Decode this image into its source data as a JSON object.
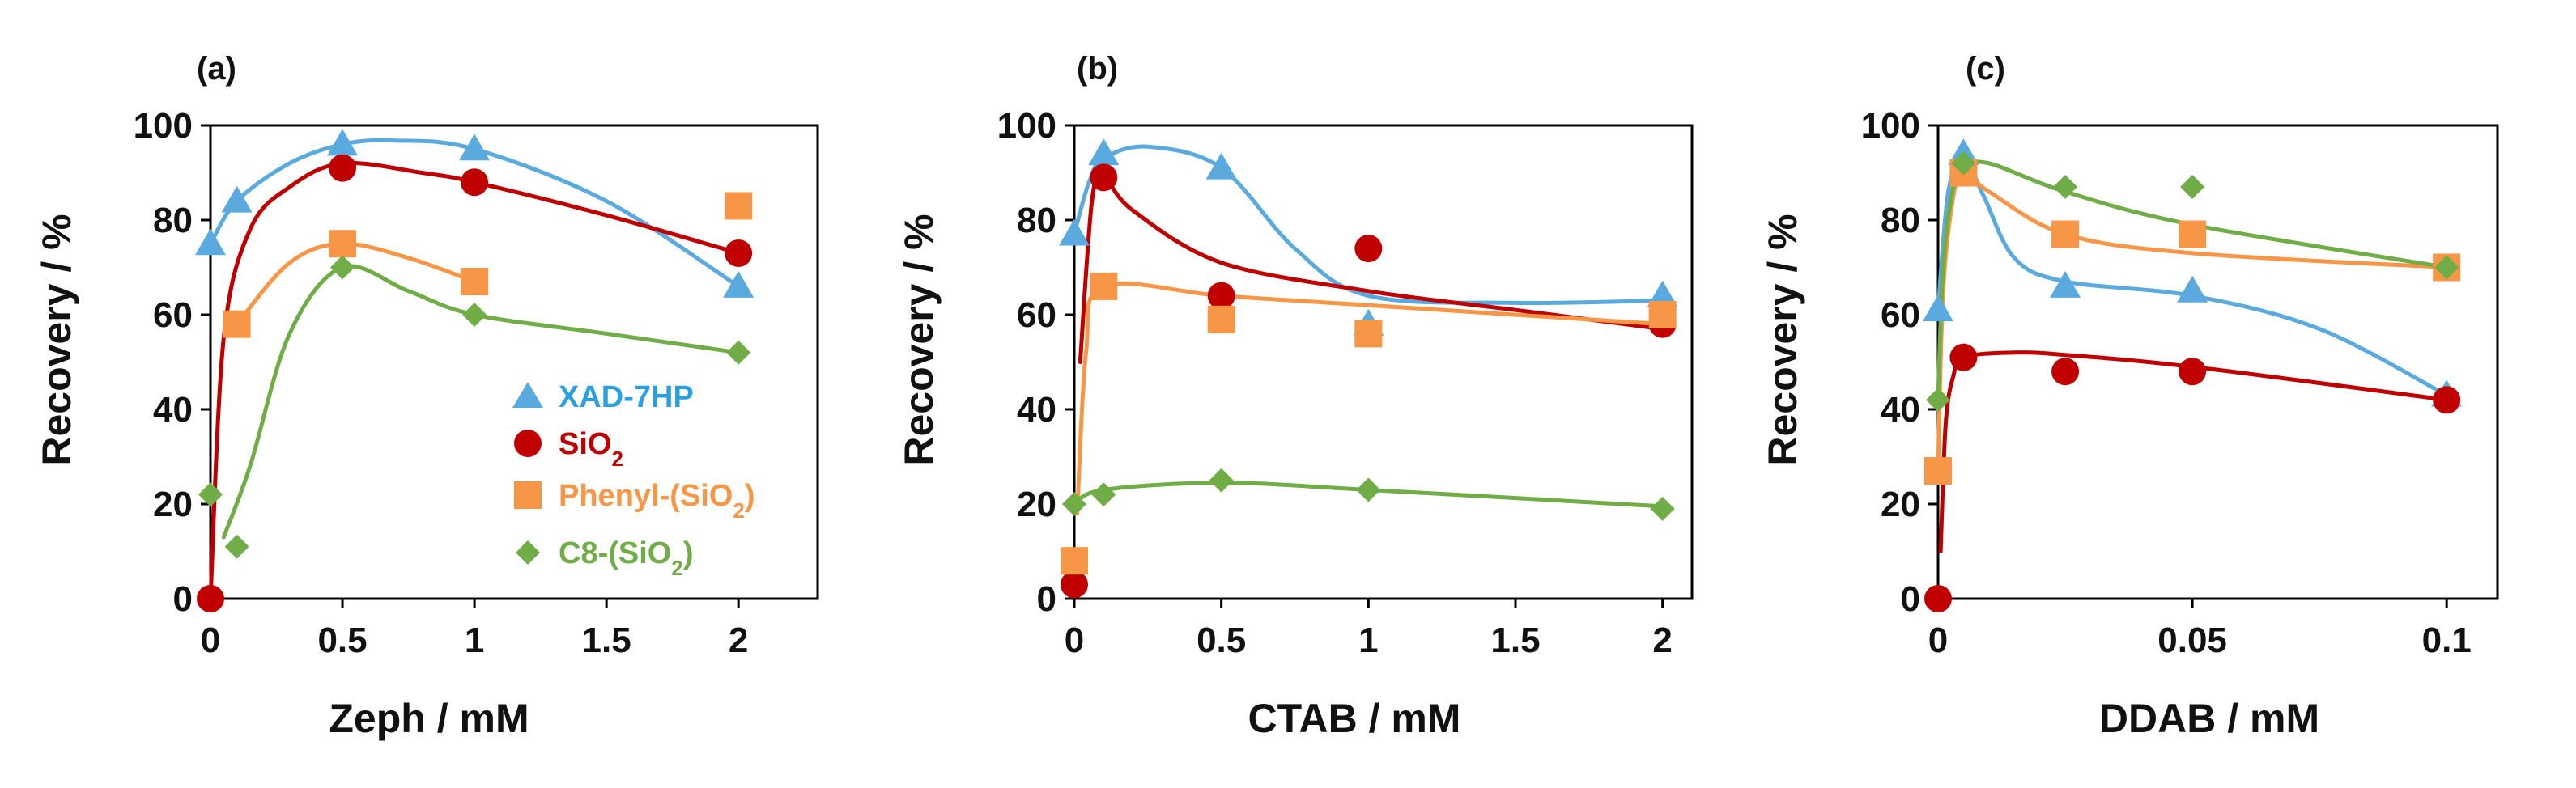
{
  "chart_data": [
    {
      "type": "scatter",
      "panel_label": "(a)",
      "xlabel": "Zeph  / mM",
      "ylabel": "Recovery / %",
      "xlim": [
        0,
        2.3
      ],
      "ylim": [
        0,
        100
      ],
      "xticks": [
        0,
        0.5,
        1,
        1.5,
        2
      ],
      "xtick_labels": [
        "0",
        "0.5",
        "1",
        "1.5",
        "2"
      ],
      "yticks": [
        0,
        20,
        40,
        60,
        80,
        100
      ],
      "ytick_labels": [
        "0",
        "20",
        "40",
        "60",
        "80",
        "100"
      ],
      "legend_position": "center-right",
      "series": [
        {
          "name": "XAD-7HP",
          "marker": "triangle",
          "color": "#5aaae0",
          "label_color": "#2b9fe0",
          "x": [
            0,
            0.1,
            0.5,
            1,
            2
          ],
          "y": [
            75,
            84,
            96,
            95,
            66
          ],
          "fit": [
            [
              0,
              75
            ],
            [
              0.1,
              84
            ],
            [
              0.3,
              92
            ],
            [
              0.5,
              96
            ],
            [
              0.7,
              96.8
            ],
            [
              1,
              95
            ],
            [
              1.5,
              84
            ],
            [
              2,
              66
            ]
          ]
        },
        {
          "name": "SiO2",
          "marker": "circle",
          "color": "#c00000",
          "label_color": "#c00000",
          "x": [
            0,
            0.5,
            1,
            2
          ],
          "y": [
            0,
            91,
            88,
            73
          ],
          "fit": [
            [
              0,
              0
            ],
            [
              0.05,
              55
            ],
            [
              0.15,
              78
            ],
            [
              0.3,
              87
            ],
            [
              0.5,
              92
            ],
            [
              0.8,
              90
            ],
            [
              1,
              88
            ],
            [
              1.5,
              81
            ],
            [
              2,
              73
            ]
          ]
        },
        {
          "name": "Phenyl-(SiO2)",
          "marker": "square",
          "color": "#f79646",
          "label_color": "#f79646",
          "x": [
            0.1,
            0.5,
            1,
            2
          ],
          "y": [
            58,
            75,
            67,
            83
          ],
          "fit": [
            [
              0.1,
              58
            ],
            [
              0.3,
              71
            ],
            [
              0.5,
              75
            ],
            [
              0.75,
              72
            ],
            [
              1,
              67
            ]
          ]
        },
        {
          "name": "C8-(SiO2)",
          "marker": "diamond",
          "color": "#70ad47",
          "label_color": "#70ad47",
          "x": [
            0,
            0.1,
            0.5,
            1,
            2
          ],
          "y": [
            22,
            11,
            70,
            60,
            52
          ],
          "fit": [
            [
              0.05,
              13
            ],
            [
              0.15,
              28
            ],
            [
              0.3,
              56
            ],
            [
              0.5,
              70
            ],
            [
              0.75,
              65
            ],
            [
              1,
              60
            ],
            [
              1.5,
              56
            ],
            [
              2,
              52
            ]
          ]
        }
      ]
    },
    {
      "type": "scatter",
      "panel_label": "(b)",
      "xlabel": "CTAB  / mM",
      "ylabel": "Recovery / %",
      "xlim": [
        0,
        2.1
      ],
      "ylim": [
        0,
        100
      ],
      "xticks": [
        0,
        0.5,
        1,
        1.5,
        2
      ],
      "xtick_labels": [
        "0",
        "0.5",
        "1",
        "1.5",
        "2"
      ],
      "yticks": [
        0,
        20,
        40,
        60,
        80,
        100
      ],
      "ytick_labels": [
        "0",
        "20",
        "40",
        "60",
        "80",
        "100"
      ],
      "series": [
        {
          "name": "XAD-7HP",
          "marker": "triangle",
          "color": "#5aaae0",
          "x": [
            0,
            0.1,
            0.5,
            1,
            2
          ],
          "y": [
            77,
            94,
            91,
            58,
            64
          ],
          "fit": [
            [
              0,
              77
            ],
            [
              0.05,
              88
            ],
            [
              0.1,
              93
            ],
            [
              0.25,
              95.5
            ],
            [
              0.5,
              91
            ],
            [
              0.75,
              74
            ],
            [
              1,
              64
            ],
            [
              1.5,
              62.5
            ],
            [
              2,
              63
            ]
          ]
        },
        {
          "name": "SiO2",
          "marker": "circle",
          "color": "#c00000",
          "x": [
            0,
            0.1,
            0.5,
            1,
            2
          ],
          "y": [
            3,
            89,
            64,
            74,
            58
          ],
          "fit": [
            [
              0.02,
              50
            ],
            [
              0.06,
              84
            ],
            [
              0.1,
              89
            ],
            [
              0.2,
              82
            ],
            [
              0.5,
              71
            ],
            [
              1,
              65
            ],
            [
              1.5,
              61
            ],
            [
              2,
              57
            ]
          ]
        },
        {
          "name": "Phenyl-(SiO2)",
          "marker": "square",
          "color": "#f79646",
          "x": [
            0,
            0.1,
            0.5,
            1,
            2
          ],
          "y": [
            8,
            66,
            59,
            56,
            60
          ],
          "fit": [
            [
              0.01,
              18
            ],
            [
              0.04,
              52
            ],
            [
              0.1,
              66
            ],
            [
              0.5,
              64
            ],
            [
              1,
              62
            ],
            [
              2,
              58
            ]
          ]
        },
        {
          "name": "C8-(SiO2)",
          "marker": "diamond",
          "color": "#70ad47",
          "x": [
            0,
            0.1,
            0.5,
            1,
            2
          ],
          "y": [
            20,
            22,
            25,
            23,
            19
          ],
          "fit": [
            [
              0,
              20
            ],
            [
              0.1,
              23
            ],
            [
              0.5,
              24.5
            ],
            [
              1,
              23
            ],
            [
              2,
              19.5
            ]
          ]
        }
      ]
    },
    {
      "type": "scatter",
      "panel_label": "(c)",
      "xlabel": "DDAB  / mM",
      "ylabel": "Recovery / %",
      "xlim": [
        0,
        0.11
      ],
      "ylim": [
        0,
        100
      ],
      "xticks": [
        0,
        0.05,
        0.1
      ],
      "xtick_labels": [
        "0",
        "0.05",
        "0.1"
      ],
      "yticks": [
        0,
        20,
        40,
        60,
        80,
        100
      ],
      "ytick_labels": [
        "0",
        "20",
        "40",
        "60",
        "80",
        "100"
      ],
      "series": [
        {
          "name": "XAD-7HP",
          "marker": "triangle",
          "color": "#5aaae0",
          "x": [
            0,
            0.005,
            0.025,
            0.05,
            0.1
          ],
          "y": [
            61,
            94,
            66,
            65,
            43
          ],
          "fit": [
            [
              0,
              61
            ],
            [
              0.002,
              86
            ],
            [
              0.005,
              93
            ],
            [
              0.009,
              85
            ],
            [
              0.015,
              72
            ],
            [
              0.025,
              67
            ],
            [
              0.05,
              64
            ],
            [
              0.075,
              57
            ],
            [
              0.1,
              43
            ]
          ]
        },
        {
          "name": "SiO2",
          "marker": "circle",
          "color": "#c00000",
          "x": [
            0,
            0.005,
            0.025,
            0.05,
            0.1
          ],
          "y": [
            0,
            51,
            48,
            48,
            42
          ],
          "fit": [
            [
              0.0005,
              10
            ],
            [
              0.0015,
              37
            ],
            [
              0.003,
              47
            ],
            [
              0.005,
              51
            ],
            [
              0.015,
              52
            ],
            [
              0.025,
              51.5
            ],
            [
              0.05,
              49
            ],
            [
              0.1,
              42
            ]
          ]
        },
        {
          "name": "Phenyl-(SiO2)",
          "marker": "square",
          "color": "#f79646",
          "x": [
            0,
            0.005,
            0.025,
            0.05,
            0.1
          ],
          "y": [
            27,
            90,
            77,
            77,
            70
          ],
          "fit": [
            [
              0,
              27
            ],
            [
              0.001,
              65
            ],
            [
              0.003,
              85
            ],
            [
              0.005,
              90
            ],
            [
              0.01,
              86
            ],
            [
              0.025,
              77
            ],
            [
              0.05,
              73
            ],
            [
              0.1,
              70
            ]
          ]
        },
        {
          "name": "C8-(SiO2)",
          "marker": "diamond",
          "color": "#70ad47",
          "x": [
            0,
            0.005,
            0.025,
            0.05,
            0.1
          ],
          "y": [
            42,
            92,
            87,
            87,
            70
          ],
          "fit": [
            [
              0,
              42
            ],
            [
              0.001,
              70
            ],
            [
              0.003,
              87
            ],
            [
              0.005,
              91
            ],
            [
              0.01,
              92
            ],
            [
              0.025,
              86
            ],
            [
              0.05,
              79
            ],
            [
              0.1,
              70
            ]
          ]
        }
      ]
    }
  ]
}
